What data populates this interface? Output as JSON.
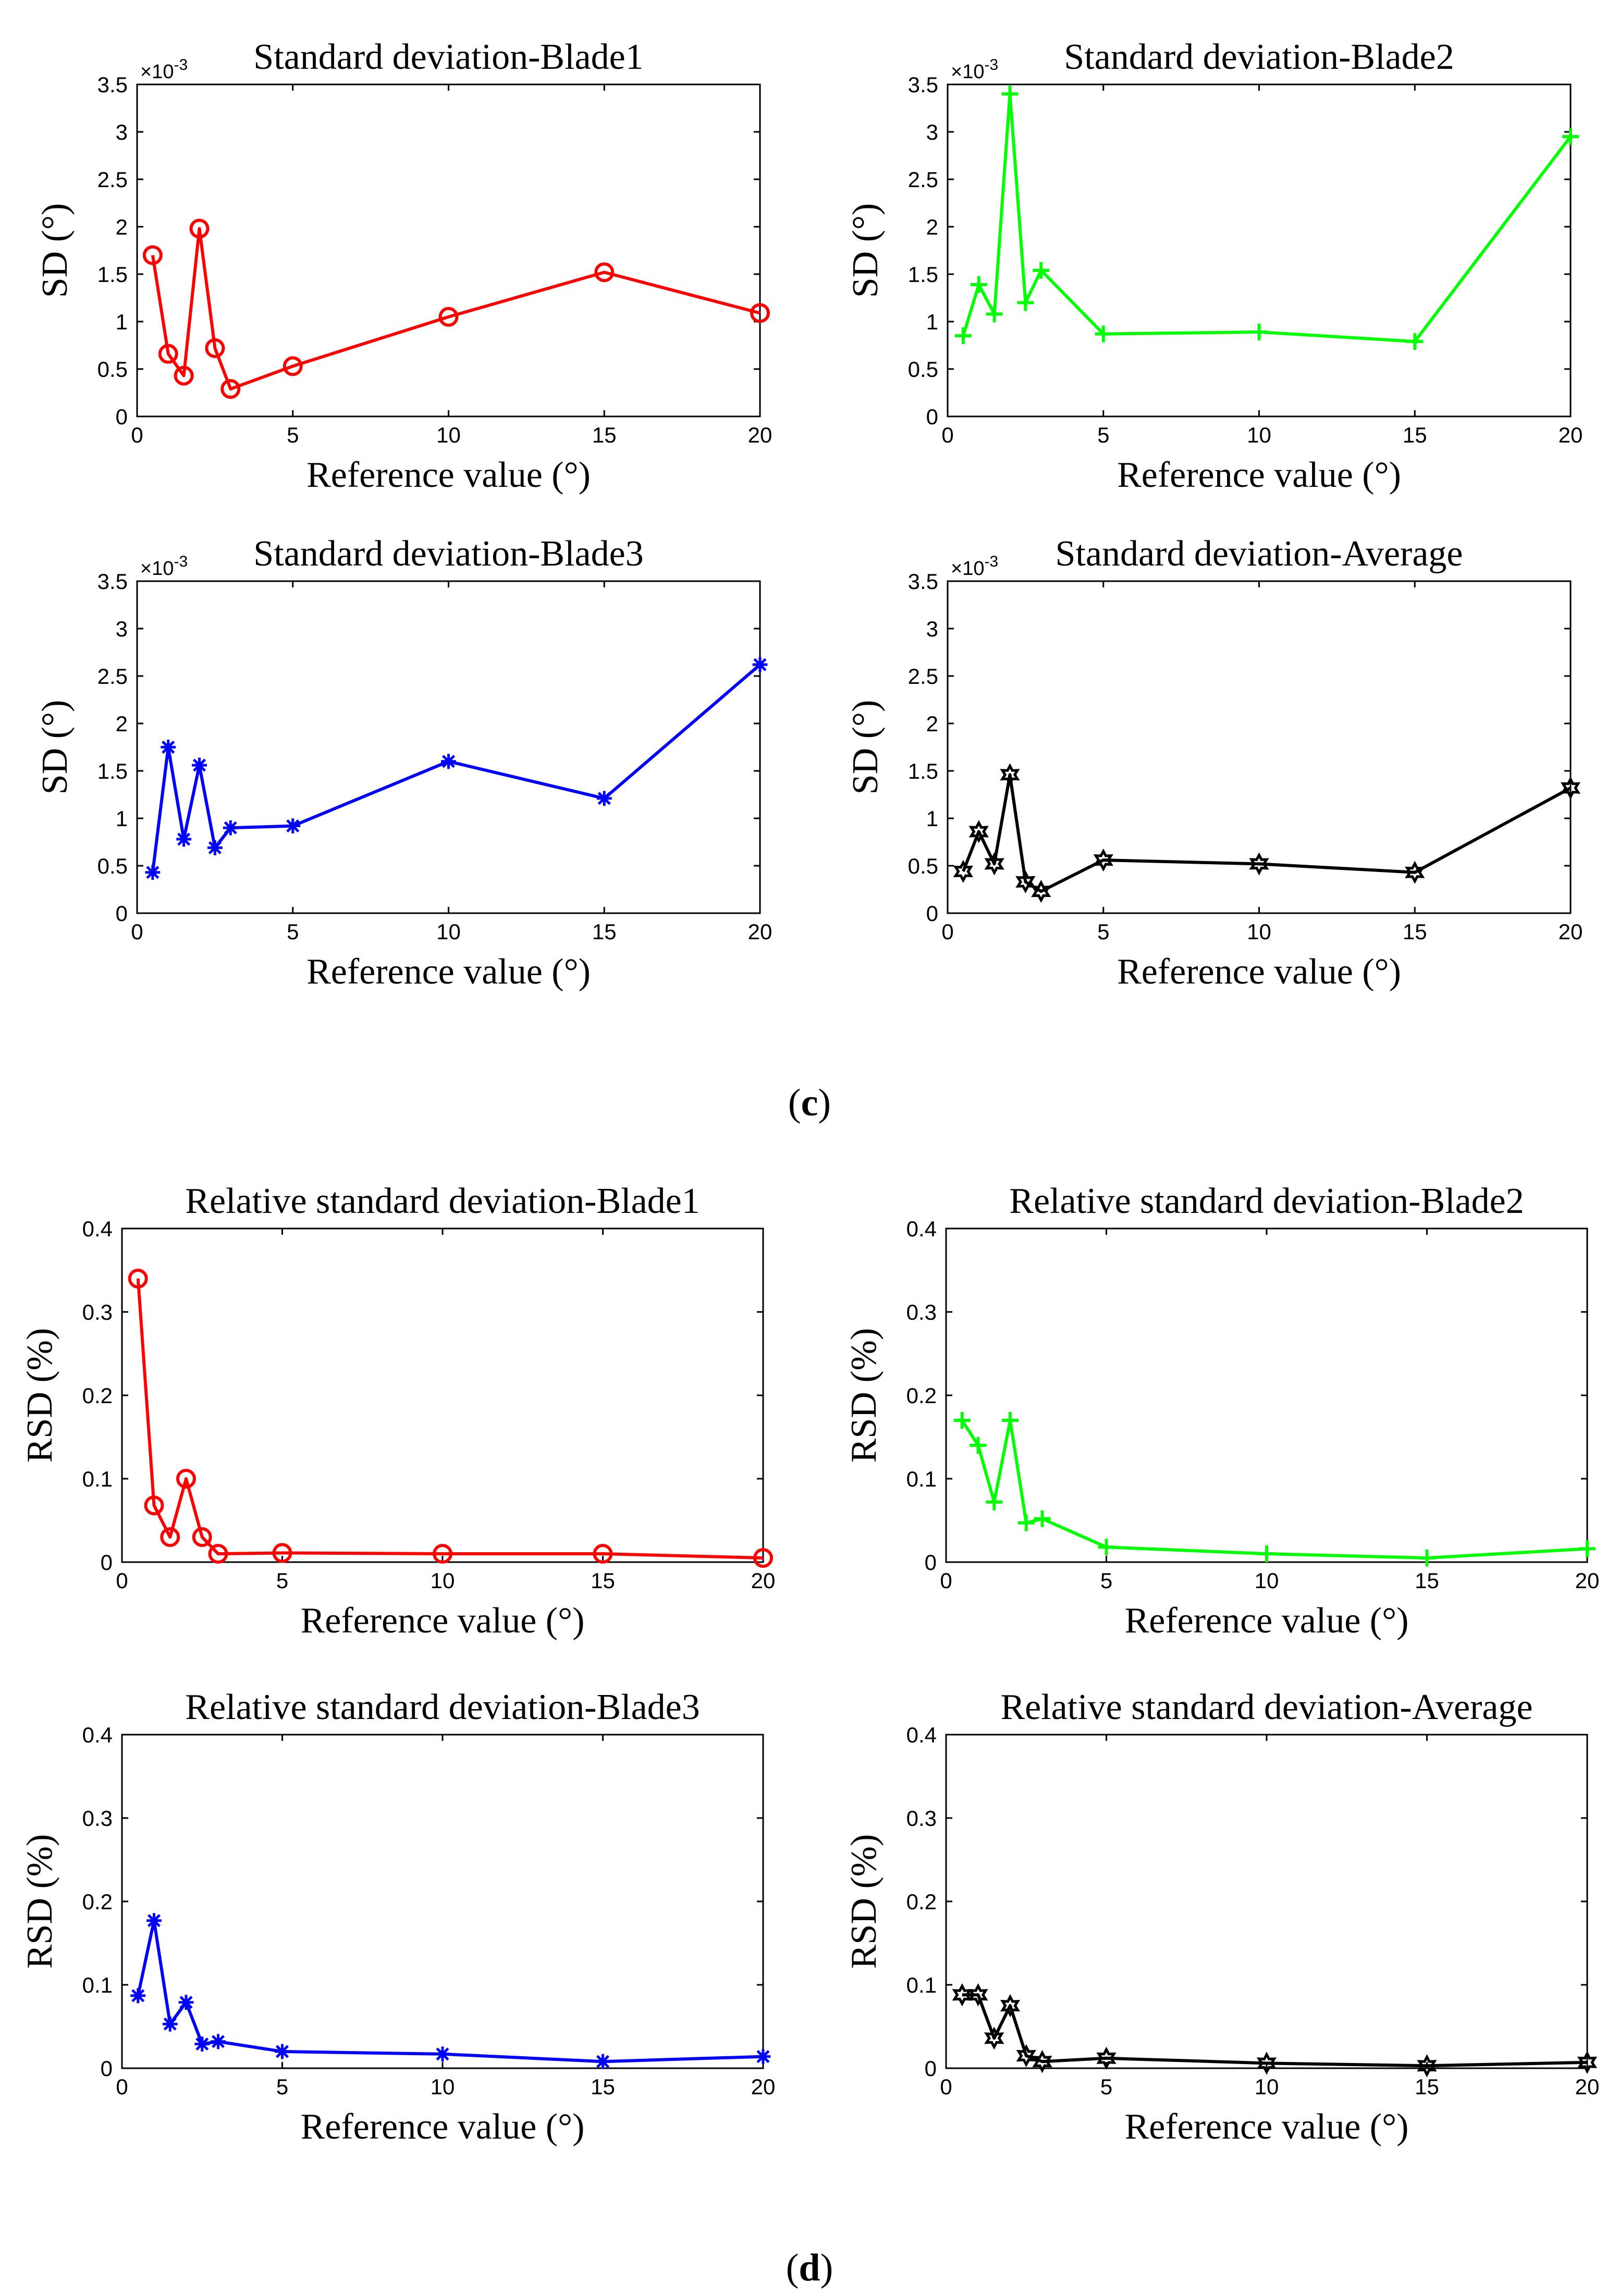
{
  "panel_labels": {
    "c": {
      "open": "(",
      "letter": "c",
      "close": ")"
    },
    "d": {
      "open": "(",
      "letter": "d",
      "close": ")"
    }
  },
  "colors": {
    "blade1": "#ff0000",
    "blade2": "#00ff00",
    "blade3": "#0000ff",
    "average": "#000000",
    "axis": "#000000"
  },
  "chart_data": [
    {
      "id": "sd-blade1",
      "type": "line",
      "title": "Standard deviation-Blade1",
      "xlabel": "Reference value (°)",
      "ylabel": "SD (°)",
      "xlim": [
        0,
        20
      ],
      "ylim": [
        0,
        3.5
      ],
      "xticks": [
        "0",
        "5",
        "10",
        "15",
        "20"
      ],
      "yticks": [
        "0",
        "0.5",
        "1",
        "1.5",
        "2",
        "2.5",
        "3",
        "3.5"
      ],
      "y_exponent": {
        "base": "×10",
        "power": "-3"
      },
      "grid": false,
      "series": [
        {
          "name": "Blade1",
          "marker": "circle",
          "color": "#ff0000",
          "x": [
            0.5,
            1,
            1.5,
            2,
            2.5,
            3,
            5,
            10,
            15,
            20
          ],
          "y": [
            1.7,
            0.66,
            0.43,
            1.98,
            0.72,
            0.29,
            0.53,
            1.05,
            1.52,
            1.09
          ]
        }
      ]
    },
    {
      "id": "sd-blade2",
      "type": "line",
      "title": "Standard deviation-Blade2",
      "xlabel": "Reference value (°)",
      "ylabel": "SD (°)",
      "xlim": [
        0,
        20
      ],
      "ylim": [
        0,
        3.5
      ],
      "xticks": [
        "0",
        "5",
        "10",
        "15",
        "20"
      ],
      "yticks": [
        "0",
        "0.5",
        "1",
        "1.5",
        "2",
        "2.5",
        "3",
        "3.5"
      ],
      "y_exponent": {
        "base": "×10",
        "power": "-3"
      },
      "grid": false,
      "series": [
        {
          "name": "Blade2",
          "marker": "plus",
          "color": "#00ff00",
          "x": [
            0.5,
            1,
            1.5,
            2,
            2.5,
            3,
            5,
            10,
            15,
            20
          ],
          "y": [
            0.85,
            1.39,
            1.08,
            3.4,
            1.2,
            1.54,
            0.87,
            0.89,
            0.79,
            2.95
          ]
        }
      ]
    },
    {
      "id": "sd-blade3",
      "type": "line",
      "title": "Standard deviation-Blade3",
      "xlabel": "Reference value (°)",
      "ylabel": "SD (°)",
      "xlim": [
        0,
        20
      ],
      "ylim": [
        0,
        3.5
      ],
      "xticks": [
        "0",
        "5",
        "10",
        "15",
        "20"
      ],
      "yticks": [
        "0",
        "0.5",
        "1",
        "1.5",
        "2",
        "2.5",
        "3",
        "3.5"
      ],
      "y_exponent": {
        "base": "×10",
        "power": "-3"
      },
      "grid": false,
      "series": [
        {
          "name": "Blade3",
          "marker": "asterisk",
          "color": "#0000ff",
          "x": [
            0.5,
            1,
            1.5,
            2,
            2.5,
            3,
            5,
            10,
            15,
            20
          ],
          "y": [
            0.43,
            1.75,
            0.78,
            1.56,
            0.69,
            0.9,
            0.92,
            1.6,
            1.21,
            2.62
          ]
        }
      ]
    },
    {
      "id": "sd-average",
      "type": "line",
      "title": "Standard deviation-Average",
      "xlabel": "Reference value (°)",
      "ylabel": "SD (°)",
      "xlim": [
        0,
        20
      ],
      "ylim": [
        0,
        3.5
      ],
      "xticks": [
        "0",
        "5",
        "10",
        "15",
        "20"
      ],
      "yticks": [
        "0",
        "0.5",
        "1",
        "1.5",
        "2",
        "2.5",
        "3",
        "3.5"
      ],
      "y_exponent": {
        "base": "×10",
        "power": "-3"
      },
      "grid": false,
      "series": [
        {
          "name": "Average",
          "marker": "hexagram",
          "color": "#000000",
          "x": [
            0.5,
            1,
            1.5,
            2,
            2.5,
            3,
            5,
            10,
            15,
            20
          ],
          "y": [
            0.44,
            0.86,
            0.52,
            1.46,
            0.33,
            0.23,
            0.56,
            0.52,
            0.43,
            1.32
          ]
        }
      ]
    },
    {
      "id": "rsd-blade1",
      "type": "line",
      "title": "Relative standard deviation-Blade1",
      "xlabel": "Reference value (°)",
      "ylabel": "RSD (%)",
      "xlim": [
        0,
        20
      ],
      "ylim": [
        0,
        0.4
      ],
      "xticks": [
        "0",
        "5",
        "10",
        "15",
        "20"
      ],
      "yticks": [
        "0",
        "0.1",
        "0.2",
        "0.3",
        "0.4"
      ],
      "grid": false,
      "series": [
        {
          "name": "Blade1",
          "marker": "circle",
          "color": "#ff0000",
          "x": [
            0.5,
            1,
            1.5,
            2,
            2.5,
            3,
            5,
            10,
            15,
            20
          ],
          "y": [
            0.34,
            0.068,
            0.03,
            0.1,
            0.03,
            0.01,
            0.011,
            0.01,
            0.01,
            0.005
          ]
        }
      ]
    },
    {
      "id": "rsd-blade2",
      "type": "line",
      "title": "Relative standard deviation-Blade2",
      "xlabel": "Reference value (°)",
      "ylabel": "RSD (%)",
      "xlim": [
        0,
        20
      ],
      "ylim": [
        0,
        0.4
      ],
      "xticks": [
        "0",
        "5",
        "10",
        "15",
        "20"
      ],
      "yticks": [
        "0",
        "0.1",
        "0.2",
        "0.3",
        "0.4"
      ],
      "grid": false,
      "series": [
        {
          "name": "Blade2",
          "marker": "plus",
          "color": "#00ff00",
          "x": [
            0.5,
            1,
            1.5,
            2,
            2.5,
            3,
            5,
            10,
            15,
            20
          ],
          "y": [
            0.17,
            0.14,
            0.072,
            0.17,
            0.047,
            0.052,
            0.018,
            0.01,
            0.005,
            0.016
          ]
        }
      ]
    },
    {
      "id": "rsd-blade3",
      "type": "line",
      "title": "Relative standard deviation-Blade3",
      "xlabel": "Reference value (°)",
      "ylabel": "RSD (%)",
      "xlim": [
        0,
        20
      ],
      "ylim": [
        0,
        0.4
      ],
      "xticks": [
        "0",
        "5",
        "10",
        "15",
        "20"
      ],
      "yticks": [
        "0",
        "0.1",
        "0.2",
        "0.3",
        "0.4"
      ],
      "grid": false,
      "series": [
        {
          "name": "Blade3",
          "marker": "asterisk",
          "color": "#0000ff",
          "x": [
            0.5,
            1,
            1.5,
            2,
            2.5,
            3,
            5,
            10,
            15,
            20
          ],
          "y": [
            0.087,
            0.177,
            0.053,
            0.079,
            0.029,
            0.032,
            0.02,
            0.017,
            0.008,
            0.014
          ]
        }
      ]
    },
    {
      "id": "rsd-average",
      "type": "line",
      "title": "Relative standard deviation-Average",
      "xlabel": "Reference value (°)",
      "ylabel": "RSD (%)",
      "xlim": [
        0,
        20
      ],
      "ylim": [
        0,
        0.4
      ],
      "xticks": [
        "0",
        "5",
        "10",
        "15",
        "20"
      ],
      "yticks": [
        "0",
        "0.1",
        "0.2",
        "0.3",
        "0.4"
      ],
      "grid": false,
      "series": [
        {
          "name": "Average",
          "marker": "hexagram",
          "color": "#000000",
          "x": [
            0.5,
            1,
            1.5,
            2,
            2.5,
            3,
            5,
            10,
            15,
            20
          ],
          "y": [
            0.088,
            0.088,
            0.036,
            0.075,
            0.015,
            0.008,
            0.012,
            0.006,
            0.003,
            0.007
          ]
        }
      ]
    }
  ]
}
